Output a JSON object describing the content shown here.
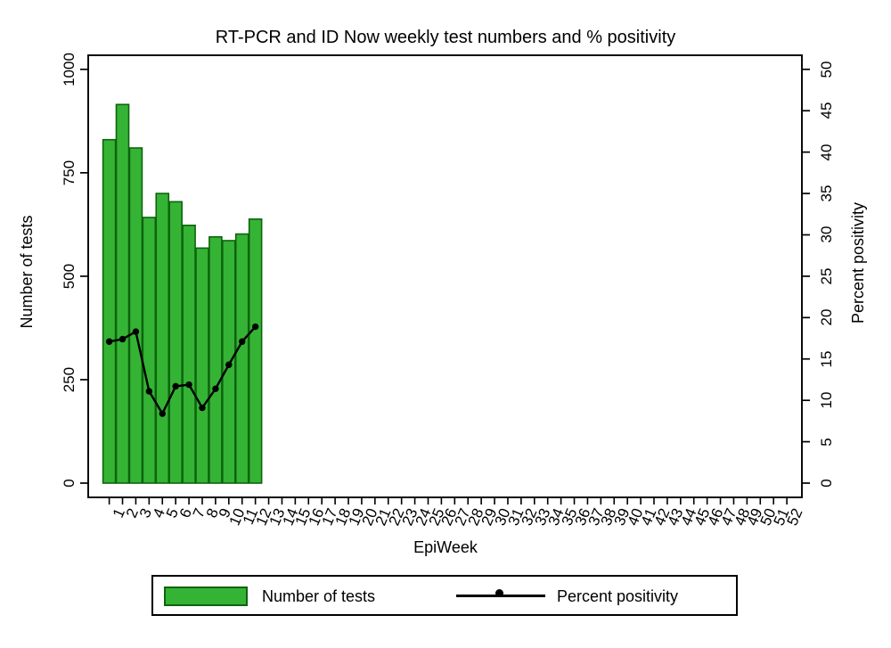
{
  "title": "RT-PCR and ID Now weekly test numbers and % positivity",
  "colors": {
    "bar_fill": "#35b335",
    "bar_border": "#0c640c",
    "line": "#000000",
    "axis": "#000000",
    "background": "#ffffff"
  },
  "chart_data": {
    "type": "combo",
    "title": "RT-PCR and ID Now weekly test numbers and % positivity",
    "xlabel": "EpiWeek",
    "ylabel_left": "Number of tests",
    "ylabel_right": "Percent positivity",
    "grid": false,
    "legend_position": "bottom",
    "x_categories": [
      1,
      2,
      3,
      4,
      5,
      6,
      7,
      8,
      9,
      10,
      11,
      12,
      13,
      14,
      15,
      16,
      17,
      18,
      19,
      20,
      21,
      22,
      23,
      24,
      25,
      26,
      27,
      28,
      29,
      30,
      31,
      32,
      33,
      34,
      35,
      36,
      37,
      38,
      39,
      40,
      41,
      42,
      43,
      44,
      45,
      46,
      47,
      48,
      49,
      50,
      51,
      52
    ],
    "left_axis": {
      "ticks": [
        0,
        250,
        500,
        750,
        1000
      ],
      "range": [
        0,
        1000
      ]
    },
    "right_axis": {
      "ticks": [
        0,
        5,
        10,
        15,
        20,
        25,
        30,
        35,
        40,
        45,
        50
      ],
      "range": [
        0,
        50
      ]
    },
    "series": [
      {
        "name": "Number of tests",
        "type": "bar",
        "axis": "left",
        "color": "#35b335",
        "border_color": "#0c640c",
        "x": [
          1,
          2,
          3,
          4,
          5,
          6,
          7,
          8,
          9,
          10,
          11,
          12
        ],
        "values": [
          830,
          915,
          810,
          642,
          700,
          680,
          623,
          568,
          595,
          586,
          602,
          638
        ]
      },
      {
        "name": "Percent positivity",
        "type": "line",
        "axis": "right",
        "color": "#000000",
        "marker": "circle",
        "x": [
          1,
          2,
          3,
          4,
          5,
          6,
          7,
          8,
          9,
          10,
          11,
          12
        ],
        "values": [
          17.1,
          17.4,
          18.3,
          11.1,
          8.4,
          11.7,
          11.9,
          9.1,
          11.4,
          14.3,
          17.1,
          18.9
        ]
      }
    ]
  },
  "legend": {
    "items": [
      {
        "label": "Number of tests",
        "swatch": "bar"
      },
      {
        "label": "Percent positivity",
        "swatch": "line-dot"
      }
    ]
  }
}
